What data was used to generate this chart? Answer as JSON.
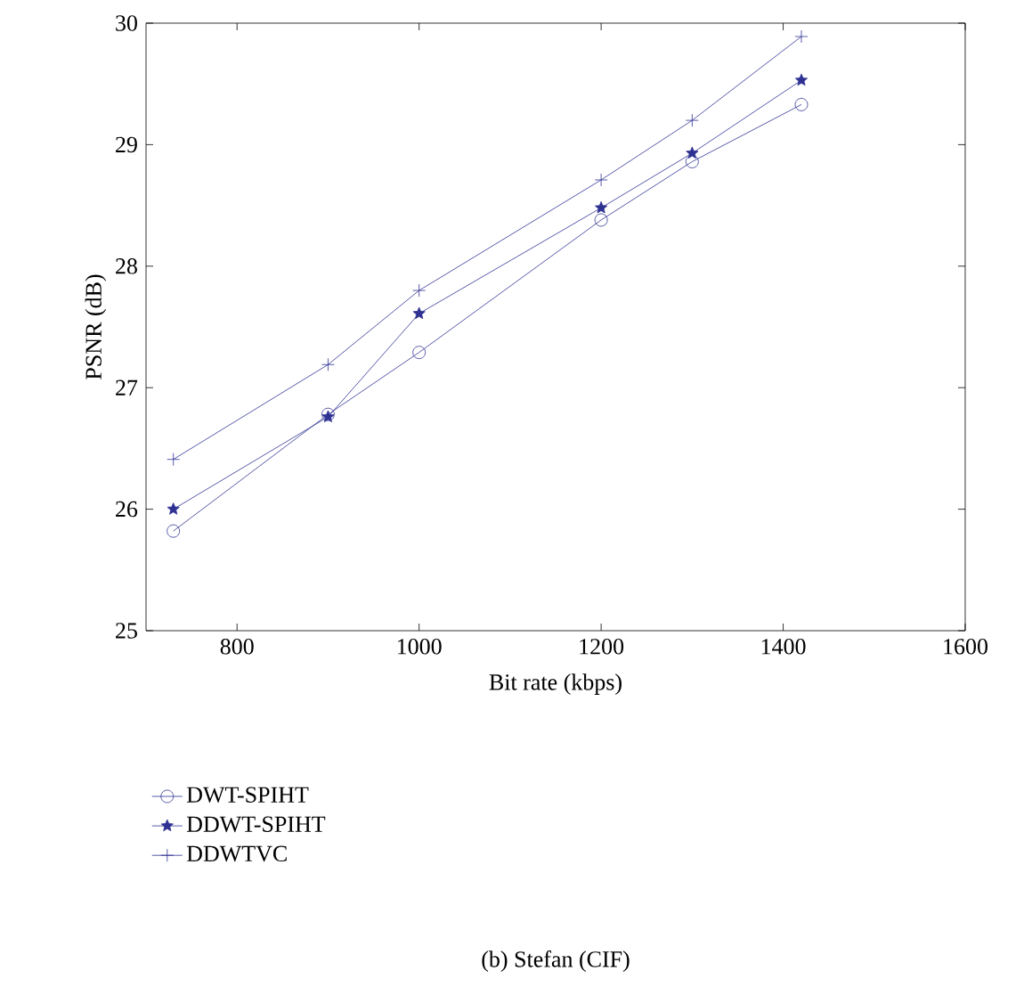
{
  "chart_data": {
    "type": "line",
    "xlabel": "Bit rate (kbps)",
    "ylabel": "PSNR (dB)",
    "x": [
      730,
      900,
      1000,
      1200,
      1300,
      1420
    ],
    "series": [
      {
        "name": "DWT-SPIHT",
        "color": "#2e3192",
        "marker": "circle",
        "values": [
          25.82,
          26.78,
          27.29,
          28.38,
          28.86,
          29.33
        ]
      },
      {
        "name": "DDWT-SPIHT",
        "color": "#2e3192",
        "marker": "star",
        "values": [
          26.0,
          26.76,
          27.61,
          28.48,
          28.93,
          29.53
        ]
      },
      {
        "name": "DDWTVC",
        "color": "#2e3192",
        "marker": "cross",
        "values": [
          26.41,
          27.19,
          27.8,
          28.71,
          29.2,
          29.89
        ]
      }
    ],
    "xlim": [
      700,
      1600
    ],
    "ylim": [
      25,
      30
    ],
    "xticks": [
      800,
      1000,
      1200,
      1400,
      1600
    ],
    "yticks": [
      25,
      26,
      27,
      28,
      29,
      30
    ],
    "grid": false,
    "legend": "bottom",
    "line_style": "solid",
    "annotations": [
      "(b) Stefan (CIF)"
    ]
  }
}
